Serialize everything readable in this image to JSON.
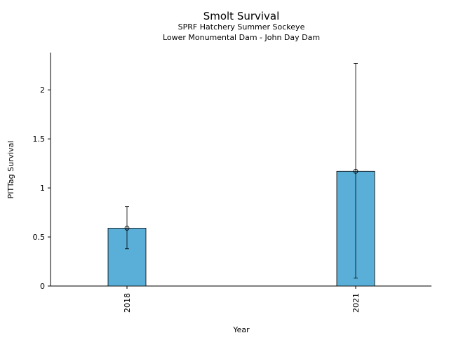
{
  "chart_data": {
    "type": "bar",
    "title": "Smolt Survival",
    "subtitle_lines": [
      "SPRF Hatchery Summer Sockeye",
      "Lower Monumental Dam - John Day Dam"
    ],
    "xlabel": "Year",
    "ylabel": "PITTag Survival",
    "categories": [
      "2018",
      "2021"
    ],
    "values": [
      0.59,
      1.17
    ],
    "error_low": [
      0.38,
      0.08
    ],
    "error_high": [
      0.81,
      2.27
    ],
    "ylim": [
      0,
      2.38
    ],
    "yticks": [
      0,
      0.5,
      1,
      1.5,
      2
    ],
    "ytick_labels": [
      "0",
      "0.5",
      "1",
      "1.5",
      "2"
    ],
    "grid": false,
    "colors": {
      "bar": "#5aafd8",
      "edge": "#000000"
    }
  }
}
